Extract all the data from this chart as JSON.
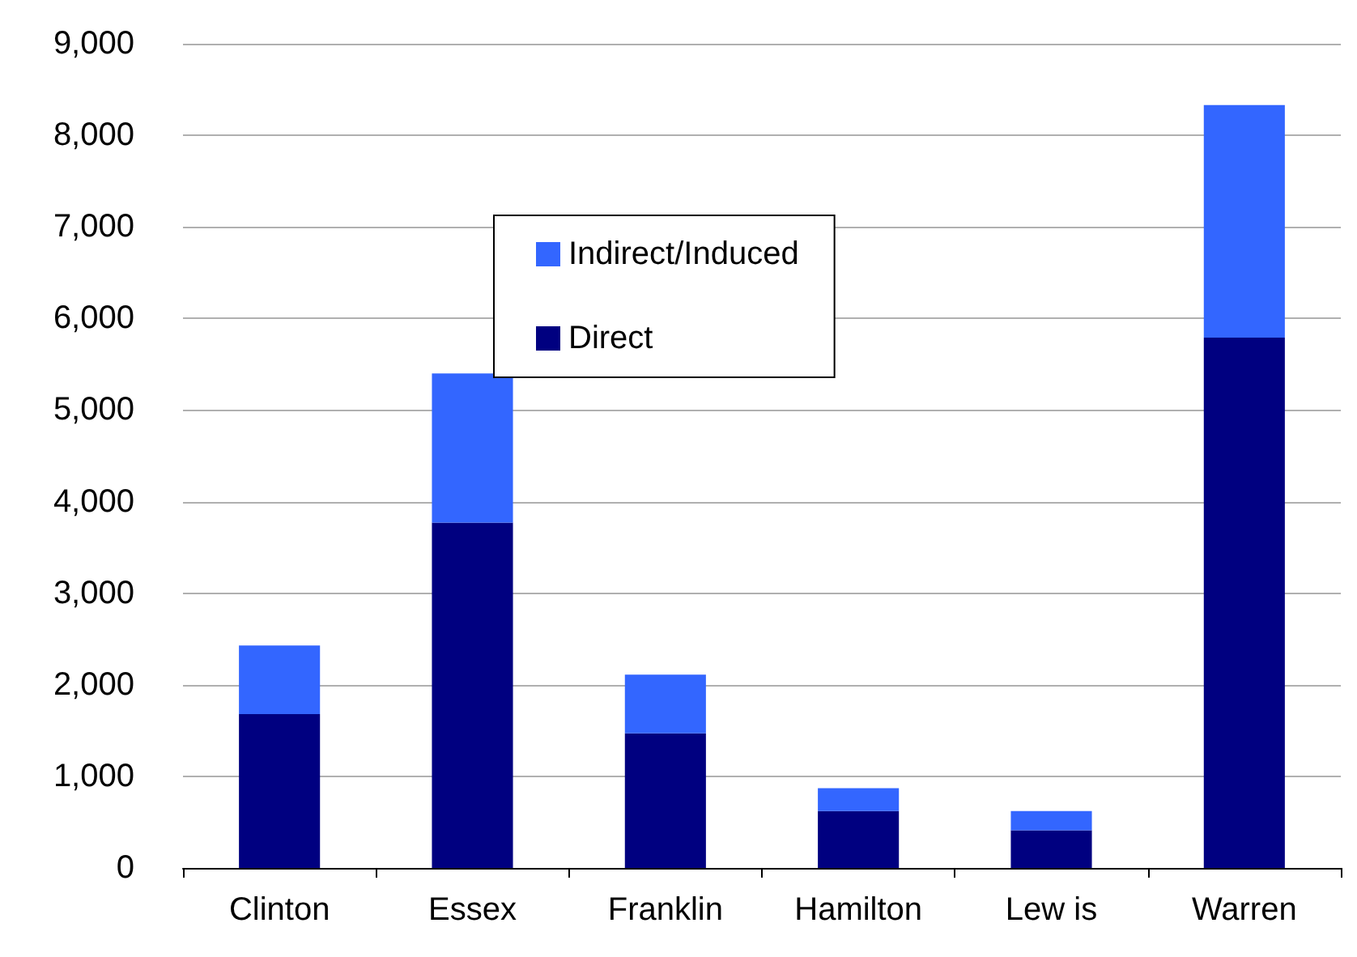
{
  "chart_data": {
    "type": "bar",
    "stacked": true,
    "categories": [
      "Clinton",
      "Essex",
      "Franklin",
      "Hamilton",
      "Lew is",
      "Warren"
    ],
    "series": [
      {
        "name": "Direct",
        "color": "#000080",
        "values": [
          1680,
          3770,
          1470,
          620,
          410,
          5790
        ]
      },
      {
        "name": "Indirect/Induced",
        "color": "#3366ff",
        "values": [
          750,
          1630,
          640,
          250,
          210,
          2540
        ]
      }
    ],
    "ylim": [
      0,
      9000
    ],
    "yticks": [
      {
        "value": 0,
        "label": "0"
      },
      {
        "value": 1000,
        "label": "1,000"
      },
      {
        "value": 2000,
        "label": "2,000"
      },
      {
        "value": 3000,
        "label": "3,000"
      },
      {
        "value": 4000,
        "label": "4,000"
      },
      {
        "value": 5000,
        "label": "5,000"
      },
      {
        "value": 6000,
        "label": "6,000"
      },
      {
        "value": 7000,
        "label": "7,000"
      },
      {
        "value": 8000,
        "label": "8,000"
      },
      {
        "value": 9000,
        "label": "9,000"
      }
    ],
    "grid": "y",
    "legend": "top left"
  }
}
